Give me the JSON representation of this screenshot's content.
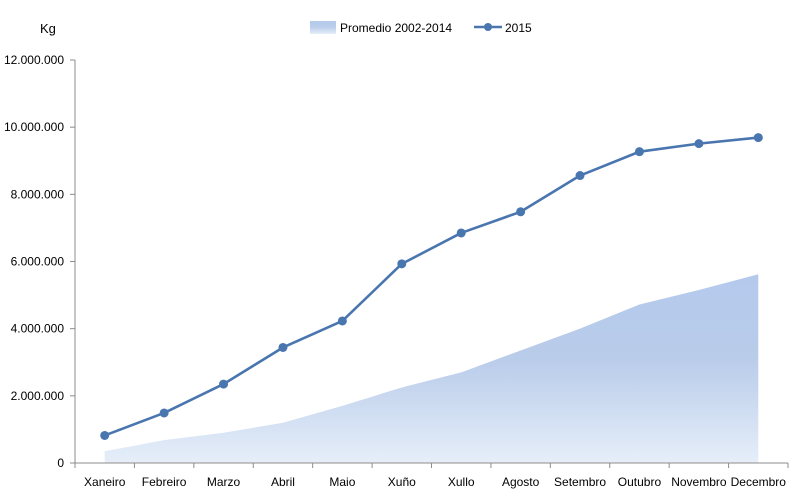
{
  "chart_data": {
    "type": "line",
    "unit_label": "Kg",
    "categories": [
      "Xaneiro",
      "Febreiro",
      "Marzo",
      "Abril",
      "Maio",
      "Xuño",
      "Xullo",
      "Agosto",
      "Setembro",
      "Outubro",
      "Novembro",
      "Decembro"
    ],
    "y_ticks": [
      {
        "value": 0,
        "label": "0"
      },
      {
        "value": 2000000,
        "label": "2.000.000"
      },
      {
        "value": 4000000,
        "label": "4.000.000"
      },
      {
        "value": 6000000,
        "label": "6.000.000"
      },
      {
        "value": 8000000,
        "label": "8.000.000"
      },
      {
        "value": 10000000,
        "label": "10.000.000"
      },
      {
        "value": 12000000,
        "label": "12.000.000"
      }
    ],
    "ylim": [
      0,
      12000000
    ],
    "grid": false,
    "legend_position": "top",
    "series": [
      {
        "name": "Promedio 2002-2014",
        "type": "area",
        "color": "#a9c0e6",
        "values": [
          350000,
          680000,
          900000,
          1200000,
          1700000,
          2250000,
          2700000,
          3350000,
          4000000,
          4720000,
          5150000,
          5620000
        ]
      },
      {
        "name": "2015",
        "type": "line",
        "color": "#4a76b0",
        "values": [
          820000,
          1490000,
          2350000,
          3440000,
          4230000,
          5930000,
          6850000,
          7480000,
          8560000,
          9270000,
          9510000,
          9690000
        ]
      }
    ]
  }
}
